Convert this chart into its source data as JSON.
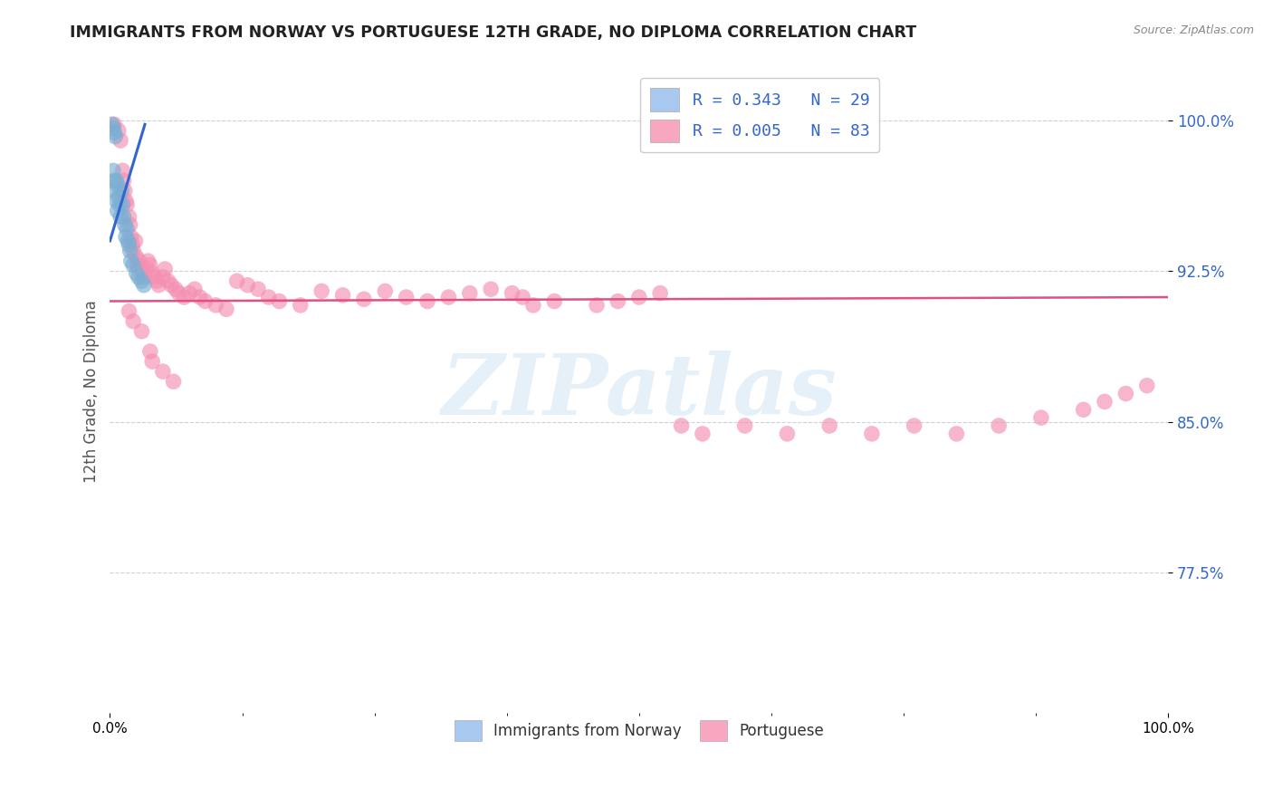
{
  "title": "IMMIGRANTS FROM NORWAY VS PORTUGUESE 12TH GRADE, NO DIPLOMA CORRELATION CHART",
  "source": "Source: ZipAtlas.com",
  "ylabel": "12th Grade, No Diploma",
  "y_tick_labels": [
    "100.0%",
    "92.5%",
    "85.0%",
    "77.5%"
  ],
  "y_tick_values": [
    1.0,
    0.925,
    0.85,
    0.775
  ],
  "x_lim": [
    0.0,
    1.0
  ],
  "y_lim": [
    0.705,
    1.025
  ],
  "legend_label_norway": "R = 0.343   N = 29",
  "legend_label_portuguese": "R = 0.005   N = 83",
  "norway_color": "#a8c8f0",
  "norwegian_fill": "#7bafd4",
  "portuguese_color": "#f7a8c0",
  "portuguese_fill": "#f48fb1",
  "norway_trend_color": "#3366cc",
  "portuguese_trend_color": "#e05080",
  "norway_scatter_x": [
    0.002,
    0.003,
    0.004,
    0.005,
    0.006,
    0.007,
    0.008,
    0.009,
    0.01,
    0.011,
    0.012,
    0.013,
    0.014,
    0.015,
    0.016,
    0.017,
    0.018,
    0.019,
    0.02,
    0.022,
    0.025,
    0.027,
    0.03,
    0.032,
    0.003,
    0.004,
    0.005,
    0.006,
    0.007
  ],
  "norway_scatter_y": [
    0.998,
    0.996,
    0.994,
    0.992,
    0.97,
    0.968,
    0.962,
    0.958,
    0.952,
    0.965,
    0.958,
    0.952,
    0.948,
    0.942,
    0.946,
    0.94,
    0.938,
    0.935,
    0.93,
    0.928,
    0.924,
    0.922,
    0.92,
    0.918,
    0.975,
    0.97,
    0.965,
    0.96,
    0.955
  ],
  "portuguese_scatter_x": [
    0.004,
    0.008,
    0.01,
    0.012,
    0.013,
    0.014,
    0.015,
    0.016,
    0.018,
    0.019,
    0.02,
    0.021,
    0.022,
    0.024,
    0.025,
    0.026,
    0.028,
    0.03,
    0.032,
    0.034,
    0.036,
    0.038,
    0.04,
    0.042,
    0.044,
    0.046,
    0.05,
    0.052,
    0.055,
    0.058,
    0.062,
    0.065,
    0.07,
    0.075,
    0.08,
    0.085,
    0.09,
    0.1,
    0.11,
    0.12,
    0.13,
    0.14,
    0.15,
    0.16,
    0.18,
    0.2,
    0.22,
    0.24,
    0.26,
    0.28,
    0.3,
    0.32,
    0.34,
    0.36,
    0.38,
    0.39,
    0.4,
    0.42,
    0.46,
    0.48,
    0.5,
    0.52,
    0.54,
    0.56,
    0.6,
    0.64,
    0.68,
    0.72,
    0.76,
    0.8,
    0.84,
    0.88,
    0.92,
    0.94,
    0.96,
    0.98,
    0.018,
    0.022,
    0.03,
    0.038,
    0.04,
    0.05,
    0.06
  ],
  "portuguese_scatter_y": [
    0.998,
    0.995,
    0.99,
    0.975,
    0.97,
    0.965,
    0.96,
    0.958,
    0.952,
    0.948,
    0.942,
    0.938,
    0.935,
    0.94,
    0.932,
    0.928,
    0.93,
    0.925,
    0.922,
    0.926,
    0.93,
    0.928,
    0.924,
    0.922,
    0.92,
    0.918,
    0.922,
    0.926,
    0.92,
    0.918,
    0.916,
    0.914,
    0.912,
    0.914,
    0.916,
    0.912,
    0.91,
    0.908,
    0.906,
    0.92,
    0.918,
    0.916,
    0.912,
    0.91,
    0.908,
    0.915,
    0.913,
    0.911,
    0.915,
    0.912,
    0.91,
    0.912,
    0.914,
    0.916,
    0.914,
    0.912,
    0.908,
    0.91,
    0.908,
    0.91,
    0.912,
    0.914,
    0.848,
    0.844,
    0.848,
    0.844,
    0.848,
    0.844,
    0.848,
    0.844,
    0.848,
    0.852,
    0.856,
    0.86,
    0.864,
    0.868,
    0.905,
    0.9,
    0.895,
    0.885,
    0.88,
    0.875,
    0.87
  ],
  "norway_trend_x": [
    0.0,
    0.033
  ],
  "norway_trend_y": [
    0.94,
    0.998
  ],
  "portuguese_trend_x": [
    0.0,
    1.0
  ],
  "portuguese_trend_y": [
    0.91,
    0.912
  ],
  "watermark_text": "ZIPatlas",
  "bottom_legend_norway": "Immigrants from Norway",
  "bottom_legend_portuguese": "Portuguese",
  "background_color": "#ffffff",
  "grid_color": "#cccccc",
  "title_color": "#222222",
  "source_color": "#888888",
  "ytick_color": "#3366cc",
  "ylabel_color": "#555555"
}
